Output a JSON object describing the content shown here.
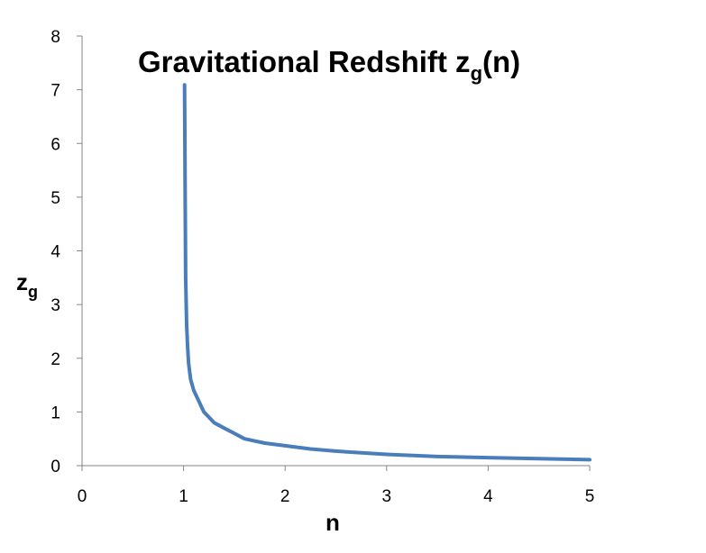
{
  "chart_data": {
    "type": "line",
    "title": {
      "main": "Gravitational Redshift z",
      "subscript": "g",
      "suffix": "(n)"
    },
    "xlabel": "n",
    "ylabel": {
      "main": "z",
      "subscript": "g"
    },
    "xlim": [
      0,
      5
    ],
    "ylim": [
      0,
      8
    ],
    "xticks": [
      "0",
      "1",
      "2",
      "3",
      "4",
      "5"
    ],
    "yticks": [
      "0",
      "1",
      "2",
      "3",
      "4",
      "5",
      "6",
      "7",
      "8"
    ],
    "grid": false,
    "legend": "none",
    "series": [
      {
        "color": "#4a7ebb",
        "x": [
          1.01,
          1.015,
          1.02,
          1.03,
          1.04,
          1.05,
          1.07,
          1.1,
          1.15,
          1.2,
          1.25,
          1.3,
          1.4,
          1.5,
          1.6,
          1.8,
          2.0,
          2.25,
          2.5,
          3.0,
          3.5,
          4.0,
          4.5,
          5.0
        ],
        "y": [
          7.09,
          5.2,
          3.5,
          2.62,
          2.2,
          1.9,
          1.6,
          1.4,
          1.2,
          1.0,
          0.9,
          0.8,
          0.7,
          0.6,
          0.5,
          0.42,
          0.37,
          0.31,
          0.27,
          0.21,
          0.17,
          0.15,
          0.13,
          0.11
        ]
      }
    ]
  }
}
